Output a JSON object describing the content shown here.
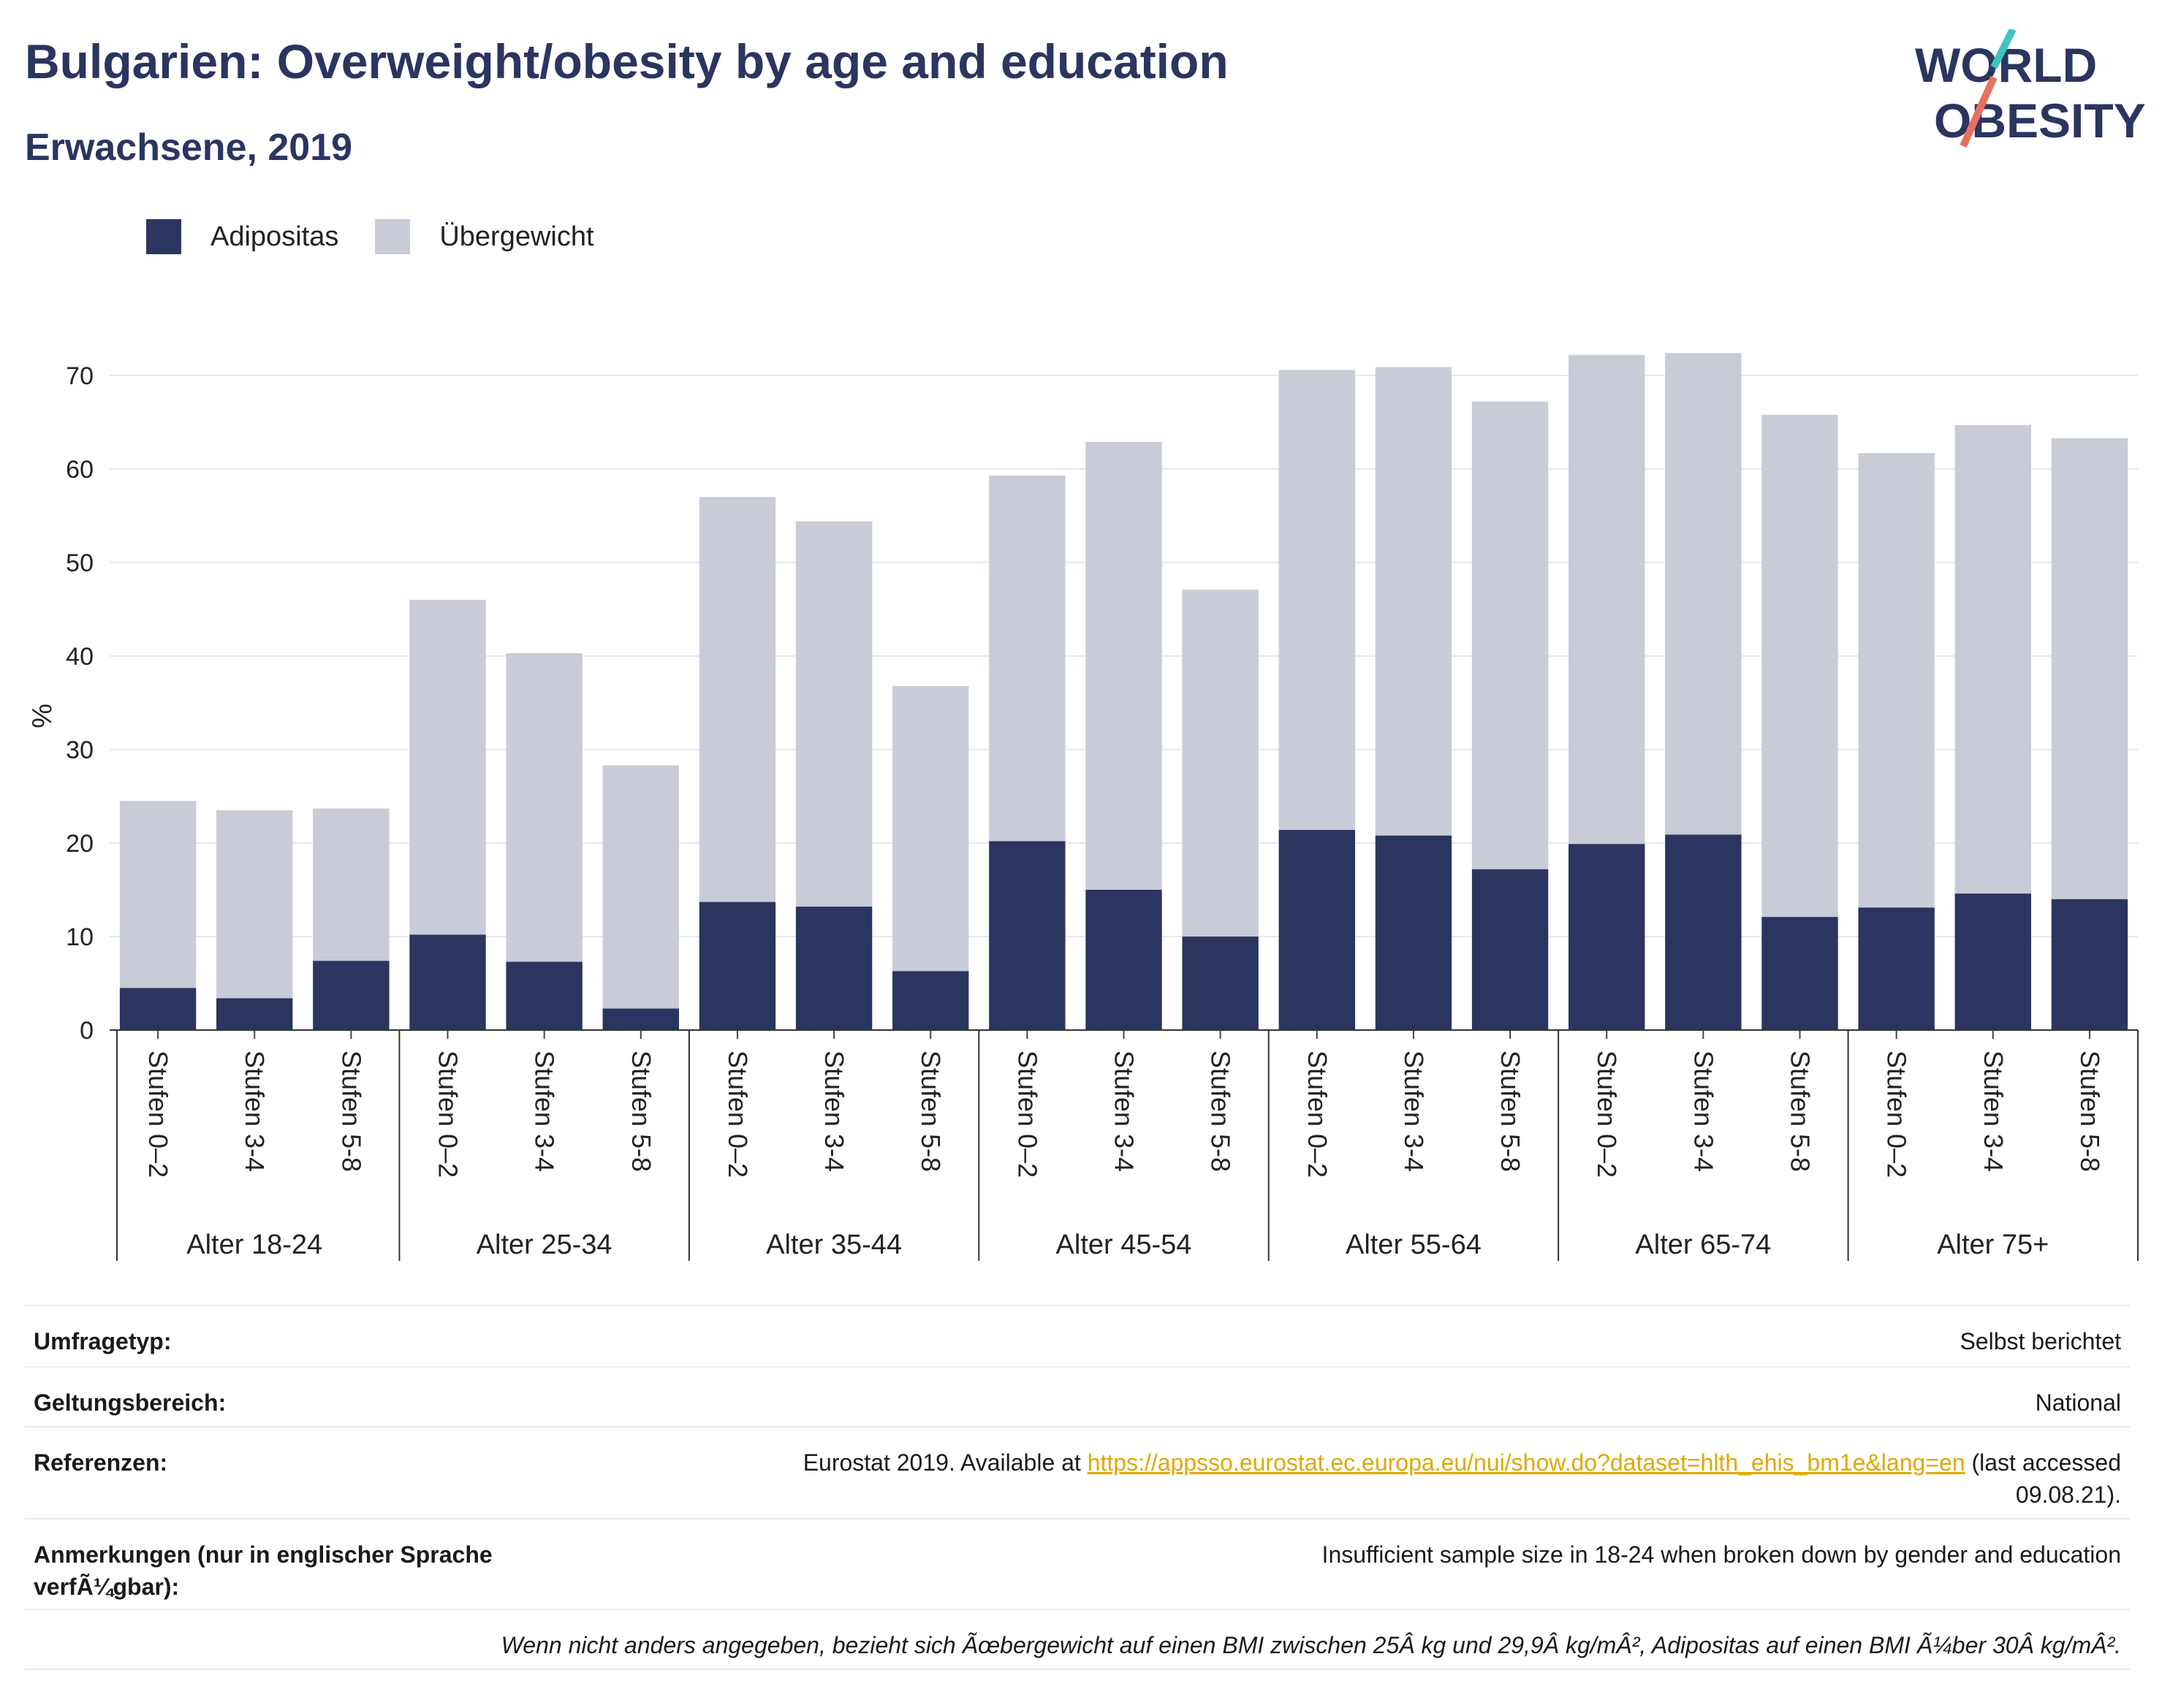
{
  "header": {
    "title": "Bulgarien: Overweight/obesity by age and education",
    "subtitle": "Erwachsene, 2019"
  },
  "logo": {
    "line1": "WORLD",
    "line2": "OBESITY"
  },
  "colors": {
    "obesity": "#2a3560",
    "overweight": "#c9cbd6",
    "title": "#2a3560",
    "logo_teal": "#3ec5c1",
    "logo_coral": "#e8705e",
    "grid": "#e6e9f0",
    "link": "#e0a800"
  },
  "chart_data": {
    "type": "bar",
    "stacked": true,
    "ylabel": "%",
    "ylim": [
      0,
      75
    ],
    "yticks": [
      0,
      10,
      20,
      30,
      40,
      50,
      60,
      70
    ],
    "grid": true,
    "legend_placement": "top-left",
    "groups": [
      "Alter 18-24",
      "Alter 25-34",
      "Alter 35-44",
      "Alter 45-54",
      "Alter 55-64",
      "Alter 65-74",
      "Alter 75+"
    ],
    "subcategories": [
      "Stufen 0–2",
      "Stufen 3-4",
      "Stufen 5-8"
    ],
    "series": [
      {
        "name": "Adipositas",
        "values": [
          4.5,
          3.4,
          7.4,
          10.2,
          7.3,
          2.3,
          13.7,
          13.2,
          6.3,
          20.2,
          15.0,
          10.0,
          21.4,
          20.8,
          17.2,
          19.9,
          20.9,
          12.1,
          13.1,
          14.6,
          14.0
        ]
      },
      {
        "name": "Übergewicht",
        "values": [
          20.0,
          20.1,
          16.3,
          35.8,
          33.0,
          26.0,
          43.3,
          41.2,
          30.5,
          39.1,
          47.9,
          37.1,
          49.2,
          50.1,
          50.0,
          52.3,
          51.5,
          53.7,
          48.6,
          50.1,
          49.3
        ]
      }
    ]
  },
  "meta": {
    "survey_label": "Umfragetyp:",
    "survey_value": "Selbst berichtet",
    "scope_label": "Geltungsbereich:",
    "scope_value": "National",
    "refs_label": "Referenzen:",
    "refs_prefix": "Eurostat 2019. Available at ",
    "refs_link": "https://appsso.eurostat.ec.europa.eu/nui/show.do?dataset=hlth_ehis_bm1e&lang=en",
    "refs_suffix": " (last accessed",
    "refs_date": "09.08.21).",
    "notes_label": "Anmerkungen (nur in englischer Sprache verfÃ¼gbar):",
    "notes_value": "Insufficient sample size in 18-24 when broken down by gender and education",
    "footnote": "Wenn nicht anders angegeben, bezieht sich Ãœbergewicht auf einen BMI zwischen 25Â kg und 29,9Â kg/mÂ², Adipositas auf einen BMI Ã¼ber 30Â kg/mÂ²."
  }
}
